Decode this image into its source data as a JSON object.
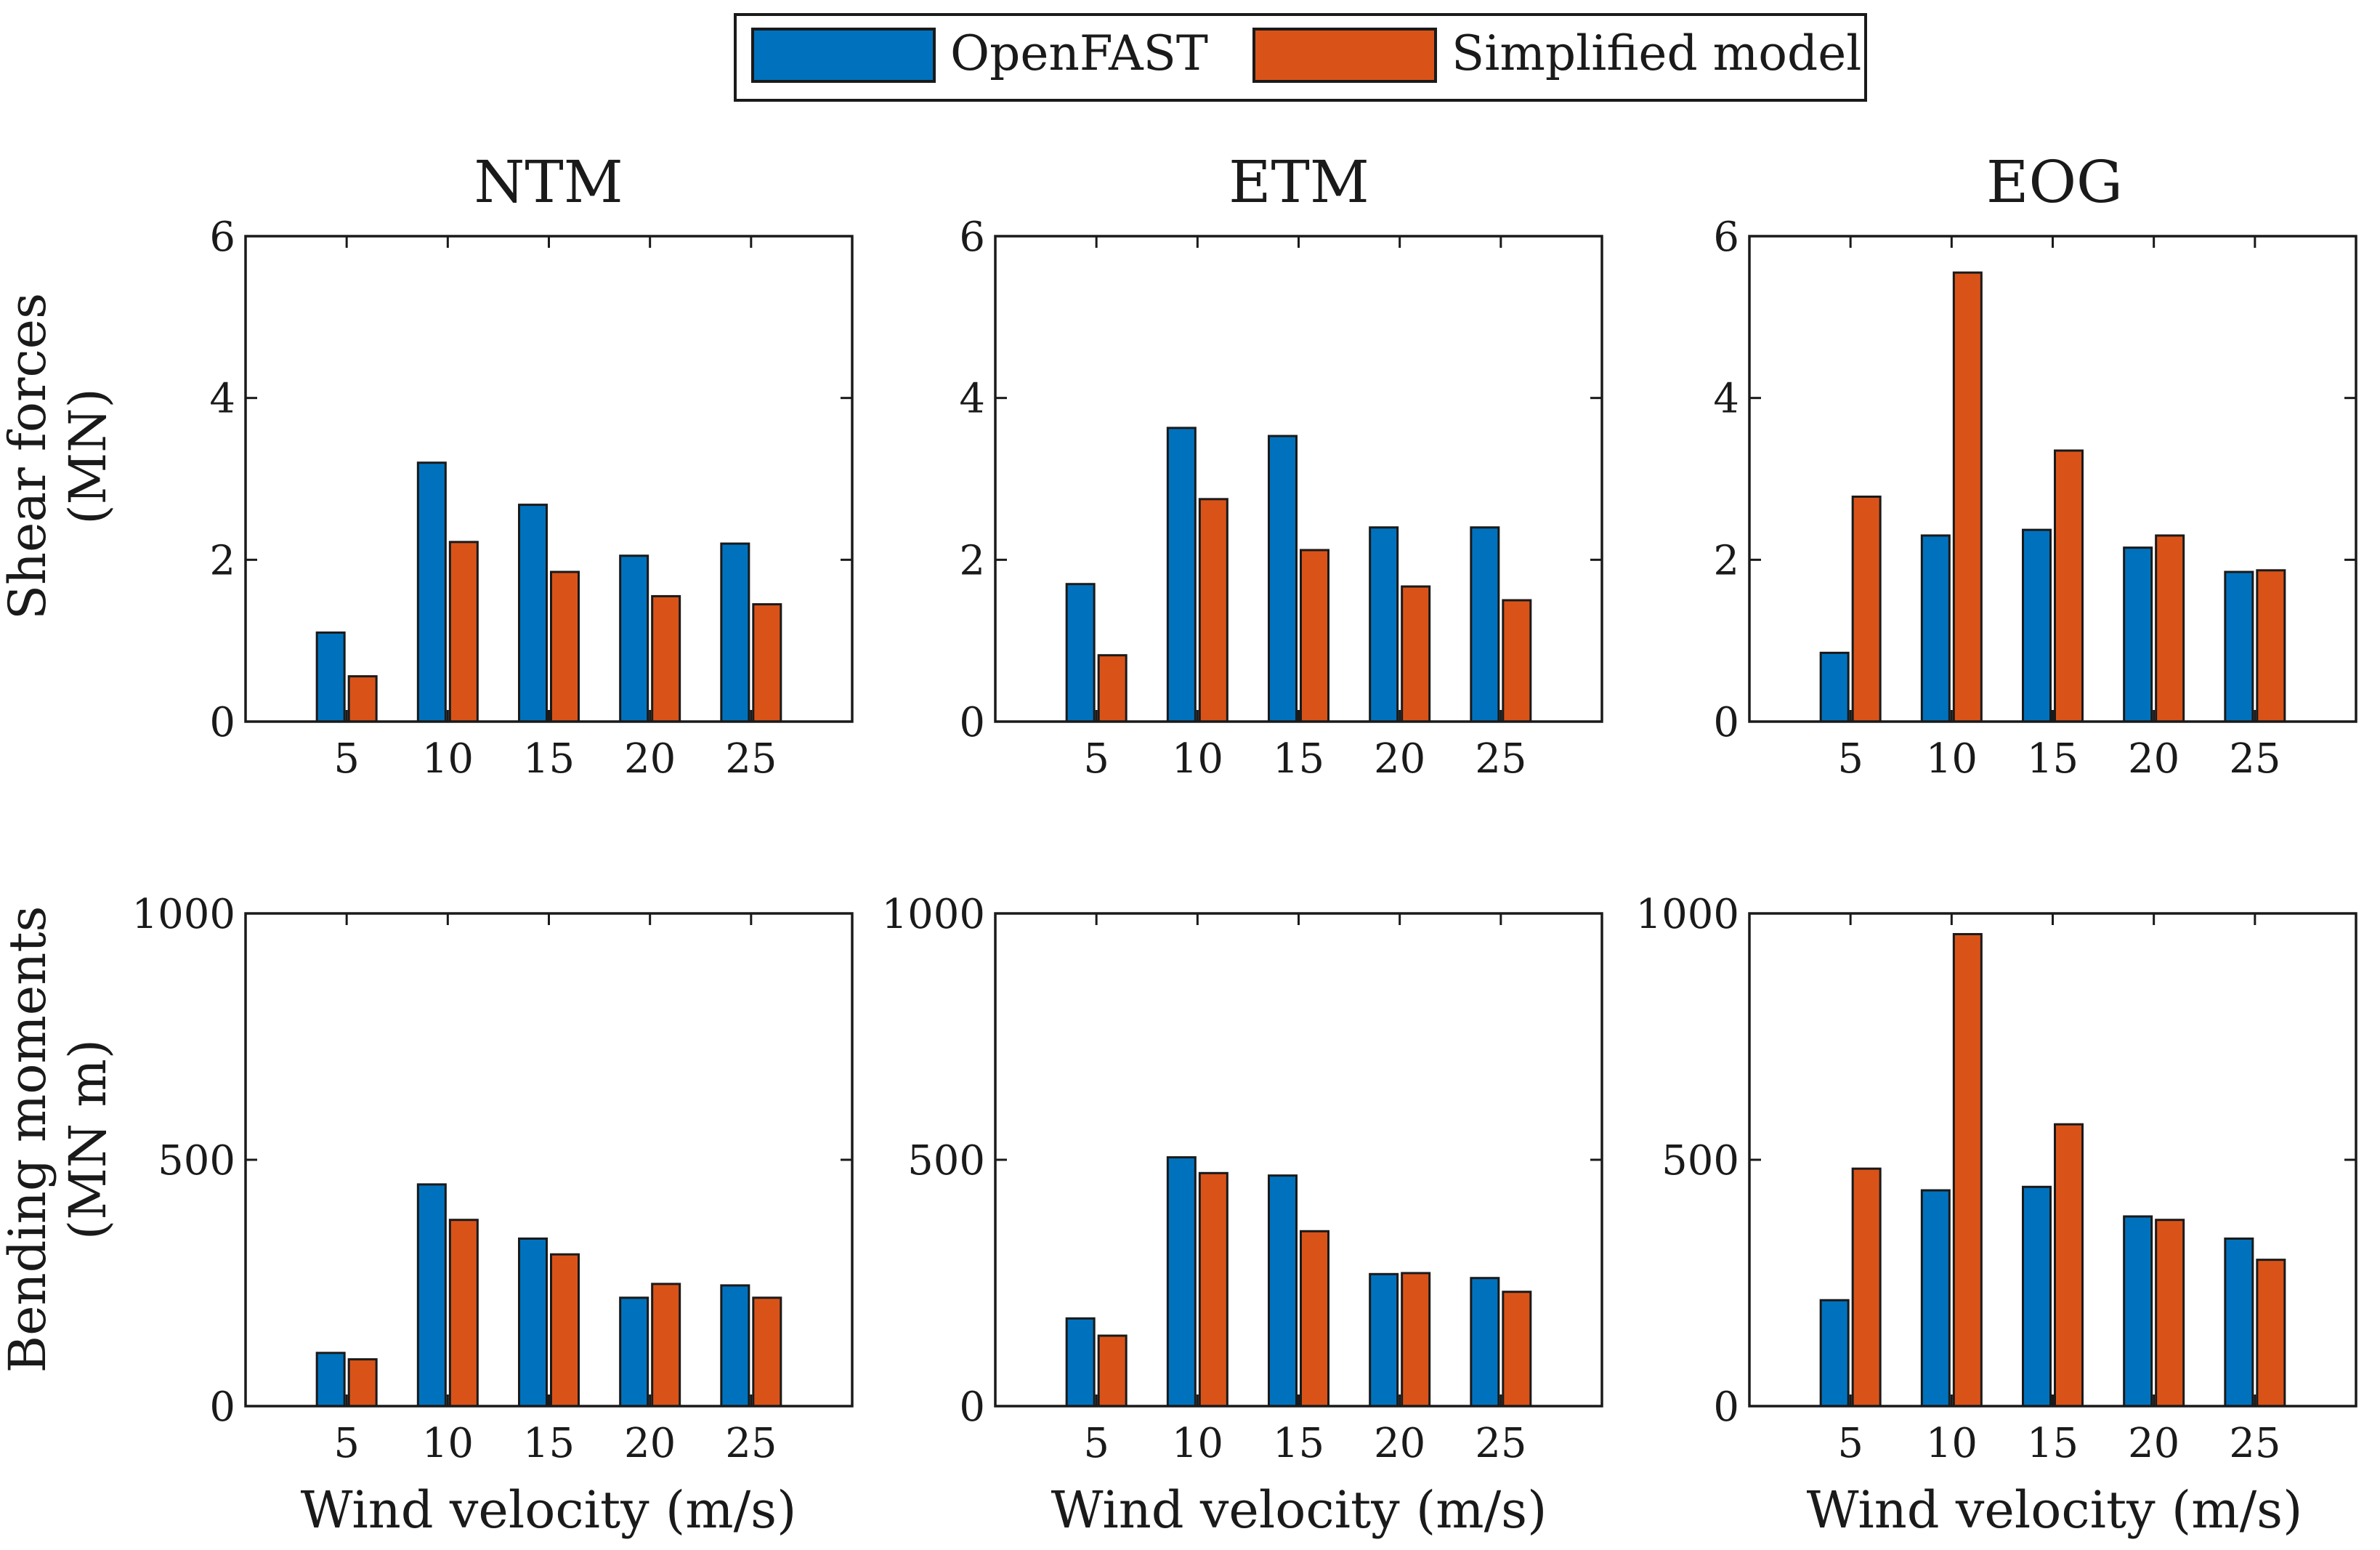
{
  "legend": {
    "entries": [
      {
        "name": "OpenFAST",
        "color": "#0072BD"
      },
      {
        "name": "Simplified model",
        "color": "#D95319"
      }
    ]
  },
  "columns": [
    {
      "title": "NTM"
    },
    {
      "title": "ETM"
    },
    {
      "title": "EOG"
    }
  ],
  "rows": [
    {
      "ylabel_line1": "Shear forces",
      "ylabel_line2": "(MN)",
      "yticks": [
        "0",
        "2",
        "4",
        "6"
      ],
      "ylim": [
        0,
        6
      ]
    },
    {
      "ylabel_line1": "Bending moments",
      "ylabel_line2": "(MN m)",
      "yticks": [
        "0",
        "500",
        "1000"
      ],
      "ylim": [
        0,
        1000
      ]
    }
  ],
  "xlabel": "Wind velocity (m/s)",
  "chart_data": [
    {
      "type": "bar",
      "title": "NTM",
      "xlabel": "",
      "ylabel": "Shear forces (MN)",
      "ylim": [
        0,
        6
      ],
      "categories": [
        "5",
        "10",
        "15",
        "20",
        "25"
      ],
      "series": [
        {
          "name": "OpenFAST",
          "values": [
            1.1,
            3.2,
            2.68,
            2.05,
            2.2
          ]
        },
        {
          "name": "Simplified model",
          "values": [
            0.56,
            2.22,
            1.85,
            1.55,
            1.45
          ]
        }
      ]
    },
    {
      "type": "bar",
      "title": "ETM",
      "xlabel": "",
      "ylabel": "",
      "ylim": [
        0,
        6
      ],
      "categories": [
        "5",
        "10",
        "15",
        "20",
        "25"
      ],
      "series": [
        {
          "name": "OpenFAST",
          "values": [
            1.7,
            3.63,
            3.53,
            2.4,
            2.4
          ]
        },
        {
          "name": "Simplified model",
          "values": [
            0.82,
            2.75,
            2.12,
            1.67,
            1.5
          ]
        }
      ]
    },
    {
      "type": "bar",
      "title": "EOG",
      "xlabel": "",
      "ylabel": "",
      "ylim": [
        0,
        6
      ],
      "categories": [
        "5",
        "10",
        "15",
        "20",
        "25"
      ],
      "series": [
        {
          "name": "OpenFAST",
          "values": [
            0.85,
            2.3,
            2.37,
            2.15,
            1.85
          ]
        },
        {
          "name": "Simplified model",
          "values": [
            2.78,
            5.55,
            3.35,
            2.3,
            1.87
          ]
        }
      ]
    },
    {
      "type": "bar",
      "title": "",
      "xlabel": "Wind velocity (m/s)",
      "ylabel": "Bending moments (MN m)",
      "ylim": [
        0,
        1000
      ],
      "categories": [
        "5",
        "10",
        "15",
        "20",
        "25"
      ],
      "series": [
        {
          "name": "OpenFAST",
          "values": [
            108,
            450,
            340,
            220,
            245
          ]
        },
        {
          "name": "Simplified model",
          "values": [
            95,
            378,
            308,
            248,
            220
          ]
        }
      ]
    },
    {
      "type": "bar",
      "title": "",
      "xlabel": "Wind velocity (m/s)",
      "ylabel": "",
      "ylim": [
        0,
        1000
      ],
      "categories": [
        "5",
        "10",
        "15",
        "20",
        "25"
      ],
      "series": [
        {
          "name": "OpenFAST",
          "values": [
            178,
            505,
            468,
            268,
            260
          ]
        },
        {
          "name": "Simplified model",
          "values": [
            143,
            473,
            355,
            270,
            232
          ]
        }
      ]
    },
    {
      "type": "bar",
      "title": "",
      "xlabel": "Wind velocity (m/s)",
      "ylabel": "",
      "ylim": [
        0,
        1000
      ],
      "categories": [
        "5",
        "10",
        "15",
        "20",
        "25"
      ],
      "series": [
        {
          "name": "OpenFAST",
          "values": [
            215,
            438,
            445,
            385,
            340
          ]
        },
        {
          "name": "Simplified model",
          "values": [
            482,
            958,
            572,
            378,
            297
          ]
        }
      ]
    }
  ]
}
